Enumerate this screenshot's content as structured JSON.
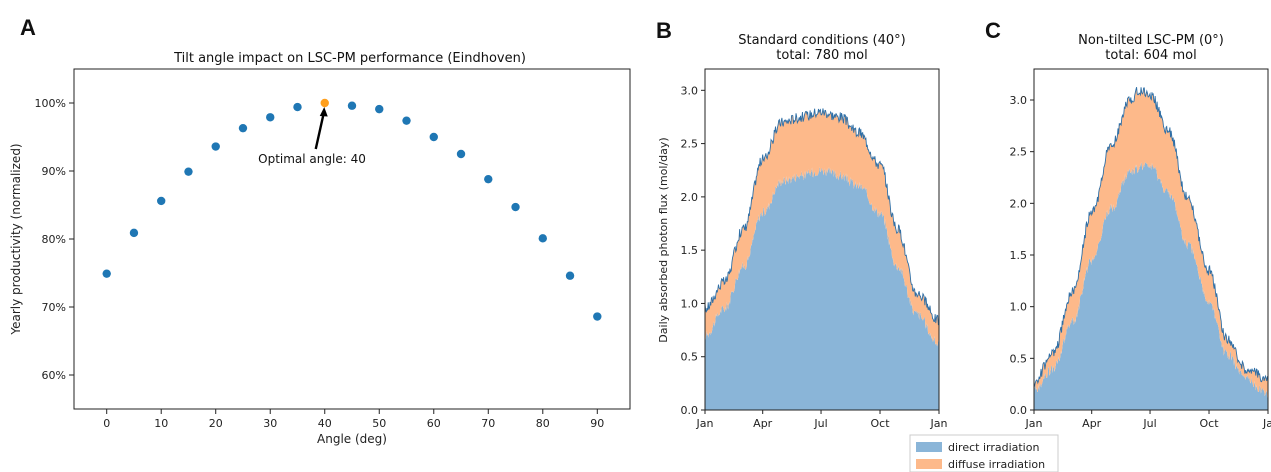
{
  "chart_data": [
    {
      "panel": "A",
      "type": "scatter",
      "title": "Tilt angle impact on LSC-PM performance (Eindhoven)",
      "xlabel": "Angle (deg)",
      "ylabel": "Yearly productivity (normalized)",
      "xlim": [
        -6,
        96
      ],
      "ylim": [
        55,
        105
      ],
      "xticks": [
        0,
        10,
        20,
        30,
        40,
        50,
        60,
        70,
        80,
        90
      ],
      "yticks": [
        60,
        70,
        80,
        90,
        100
      ],
      "ytick_labels": [
        "60%",
        "70%",
        "80%",
        "90%",
        "100%"
      ],
      "x": [
        0,
        5,
        10,
        15,
        20,
        25,
        30,
        35,
        40,
        45,
        50,
        55,
        60,
        65,
        70,
        75,
        80,
        85,
        90
      ],
      "y": [
        74.9,
        80.9,
        85.6,
        89.9,
        93.6,
        96.3,
        97.9,
        99.4,
        100,
        99.6,
        99.1,
        97.4,
        95.0,
        92.5,
        88.8,
        84.7,
        80.1,
        74.6,
        68.6
      ],
      "highlight": {
        "x": 40,
        "y": 100,
        "color": "#ff9f1c"
      },
      "annotation": {
        "text": "Optimal angle: 40",
        "points_to": [
          40,
          100
        ]
      },
      "point_color": "#1f77b4",
      "grid": false
    },
    {
      "panel": "B",
      "type": "area",
      "title": "Standard conditions (40°)",
      "subtitle": "total: 780 mol",
      "ylabel": "Daily absorbed photon flux (mol/day)",
      "xlabel": "",
      "xlim": [
        0,
        365
      ],
      "ylim": [
        0,
        3.2
      ],
      "xticks": [
        0,
        90,
        181,
        273,
        365
      ],
      "xtick_labels": [
        "Jan",
        "Apr",
        "Jul",
        "Oct",
        "Jan"
      ],
      "yticks": [
        0.0,
        0.5,
        1.0,
        1.5,
        2.0,
        2.5,
        3.0
      ],
      "ytick_labels": [
        "0.0",
        "0.5",
        "1.0",
        "1.5",
        "2.0",
        "2.5",
        "3.0"
      ],
      "x": [
        0,
        30,
        60,
        90,
        120,
        150,
        181,
        210,
        240,
        273,
        300,
        330,
        365
      ],
      "series": [
        {
          "name": "direct irradiation",
          "values": [
            0.7,
            0.95,
            1.35,
            1.85,
            2.15,
            2.2,
            2.25,
            2.2,
            2.1,
            1.85,
            1.35,
            0.9,
            0.62
          ]
        },
        {
          "name": "diffuse irradiation",
          "values": [
            0.25,
            0.25,
            0.35,
            0.5,
            0.55,
            0.55,
            0.55,
            0.55,
            0.5,
            0.45,
            0.35,
            0.2,
            0.22
          ]
        }
      ],
      "colors": [
        "#8ab5d8",
        "#fdb98a"
      ],
      "edge_color": "#2f6fa6"
    },
    {
      "panel": "C",
      "type": "area",
      "title": "Non-tilted LSC-PM (0°)",
      "subtitle": "total: 604 mol",
      "xlabel": "",
      "ylabel": "",
      "xlim": [
        0,
        365
      ],
      "ylim": [
        0,
        3.3
      ],
      "xticks": [
        0,
        90,
        181,
        273,
        365
      ],
      "xtick_labels": [
        "Jan",
        "Apr",
        "Jul",
        "Oct",
        "Ja"
      ],
      "yticks": [
        0.0,
        0.5,
        1.0,
        1.5,
        2.0,
        2.5,
        3.0
      ],
      "ytick_labels": [
        "0.0",
        "0.5",
        "1.0",
        "1.5",
        "2.0",
        "2.5",
        "3.0"
      ],
      "x": [
        0,
        30,
        60,
        90,
        120,
        150,
        165,
        181,
        210,
        240,
        273,
        300,
        330,
        365
      ],
      "series": [
        {
          "name": "direct irradiation",
          "values": [
            0.2,
            0.4,
            0.85,
            1.45,
            1.95,
            2.3,
            2.35,
            2.35,
            2.1,
            1.6,
            1.05,
            0.55,
            0.3,
            0.16
          ]
        },
        {
          "name": "diffuse irradiation",
          "values": [
            0.07,
            0.15,
            0.3,
            0.45,
            0.6,
            0.7,
            0.75,
            0.7,
            0.6,
            0.45,
            0.3,
            0.15,
            0.1,
            0.14
          ]
        }
      ],
      "colors": [
        "#8ab5d8",
        "#fdb98a"
      ],
      "edge_color": "#2f6fa6"
    }
  ],
  "legend": {
    "placement": "bottom-center",
    "entries": [
      {
        "label": "direct irradiation",
        "color": "#8ab5d8"
      },
      {
        "label": "diffuse irradiation",
        "color": "#fdb98a"
      }
    ]
  }
}
